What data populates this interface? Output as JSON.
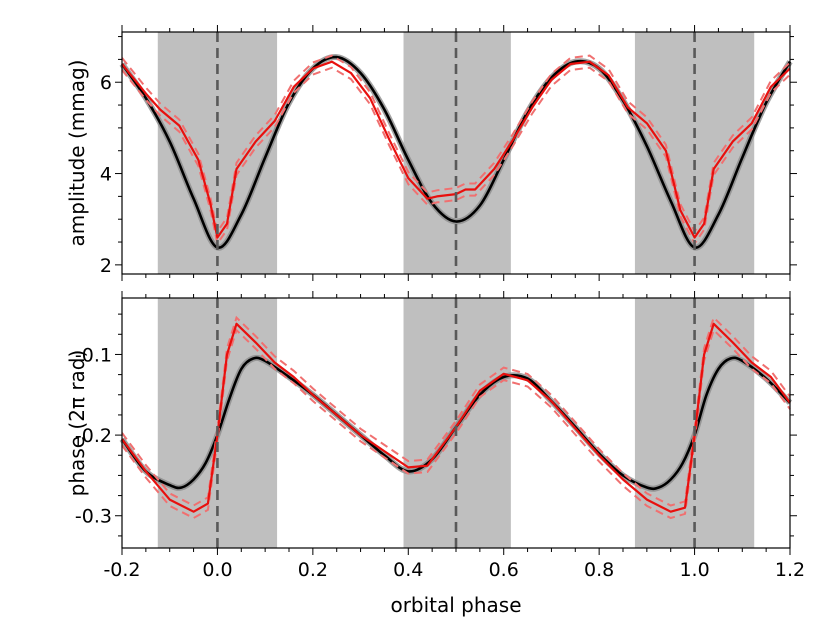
{
  "colors": {
    "eclipse_band": "#bfbfbf",
    "eclipse_line": "#595959",
    "model": "#000000",
    "observed": "#e8100e",
    "observed_error": "#f07070",
    "model_error": "#8c8c8c"
  },
  "chart_data": [
    {
      "type": "line",
      "ylabel": "amplitude (mmag)",
      "xlabel": "",
      "xlim": [
        -0.2,
        1.2
      ],
      "ylim": [
        1.8,
        7.1
      ],
      "y_ticks": [
        2,
        4,
        6
      ],
      "y_tick_labels": [
        "2",
        "4",
        "6"
      ],
      "shaded_regions": [
        [
          -0.125,
          0.125
        ],
        [
          0.39,
          0.615
        ],
        [
          0.875,
          1.125
        ]
      ],
      "vertical_lines": [
        0.0,
        0.5,
        1.0
      ],
      "series": [
        {
          "role": "model",
          "x": [
            -0.2,
            -0.15,
            -0.1,
            -0.05,
            0.0,
            0.05,
            0.1,
            0.15,
            0.2,
            0.25,
            0.3,
            0.35,
            0.4,
            0.45,
            0.5,
            0.55,
            0.6,
            0.65,
            0.7,
            0.75,
            0.8,
            0.85,
            0.9,
            0.95,
            1.0,
            1.05,
            1.1,
            1.15,
            1.2
          ],
          "values": [
            6.4,
            5.65,
            4.7,
            3.45,
            2.38,
            3.1,
            4.35,
            5.55,
            6.3,
            6.55,
            6.2,
            5.4,
            4.3,
            3.35,
            2.95,
            3.3,
            4.3,
            5.35,
            6.1,
            6.45,
            6.3,
            5.6,
            4.6,
            3.4,
            2.38,
            3.1,
            4.35,
            5.55,
            6.45
          ]
        },
        {
          "role": "observed",
          "x": [
            -0.2,
            -0.15,
            -0.12,
            -0.08,
            -0.04,
            -0.015,
            0.0,
            0.02,
            0.04,
            0.08,
            0.12,
            0.16,
            0.2,
            0.24,
            0.28,
            0.32,
            0.36,
            0.4,
            0.44,
            0.46,
            0.5,
            0.52,
            0.54,
            0.58,
            0.62,
            0.66,
            0.7,
            0.74,
            0.78,
            0.82,
            0.86,
            0.9,
            0.94,
            0.97,
            1.0,
            1.02,
            1.04,
            1.08,
            1.12,
            1.16,
            1.2
          ],
          "values": [
            6.4,
            5.75,
            5.4,
            5.05,
            4.3,
            3.35,
            2.6,
            2.9,
            4.1,
            4.7,
            5.15,
            5.9,
            6.3,
            6.45,
            6.2,
            5.65,
            4.75,
            3.9,
            3.45,
            3.5,
            3.55,
            3.65,
            3.65,
            4.1,
            4.75,
            5.45,
            6.05,
            6.4,
            6.45,
            6.15,
            5.45,
            5.1,
            4.5,
            3.2,
            2.6,
            2.9,
            4.1,
            4.7,
            5.1,
            5.9,
            6.3
          ]
        }
      ]
    },
    {
      "type": "line",
      "ylabel": "phase (2π rad)",
      "xlabel": "orbital phase",
      "xlim": [
        -0.2,
        1.2
      ],
      "ylim": [
        -0.34,
        -0.03
      ],
      "x_ticks": [
        -0.2,
        0.0,
        0.2,
        0.4,
        0.6,
        0.8,
        1.0,
        1.2
      ],
      "x_tick_labels": [
        "-0.2",
        "0.0",
        "0.2",
        "0.4",
        "0.6",
        "0.8",
        "1.0",
        "1.2"
      ],
      "y_ticks": [
        -0.3,
        -0.2,
        -0.1
      ],
      "y_tick_labels": [
        "-0.3",
        "-0.2",
        "-0.1"
      ],
      "shaded_regions": [
        [
          -0.125,
          0.125
        ],
        [
          0.39,
          0.615
        ],
        [
          0.875,
          1.125
        ]
      ],
      "vertical_lines": [
        0.0,
        0.5,
        1.0
      ],
      "series": [
        {
          "role": "model",
          "x": [
            -0.2,
            -0.15,
            -0.1,
            -0.075,
            -0.05,
            -0.025,
            0.0,
            0.025,
            0.05,
            0.075,
            0.1,
            0.15,
            0.2,
            0.25,
            0.3,
            0.35,
            0.4,
            0.45,
            0.5,
            0.55,
            0.6,
            0.65,
            0.7,
            0.75,
            0.8,
            0.85,
            0.9,
            0.925,
            0.95,
            0.975,
            1.0,
            1.025,
            1.05,
            1.075,
            1.1,
            1.15,
            1.2
          ],
          "values": [
            -0.205,
            -0.245,
            -0.262,
            -0.265,
            -0.255,
            -0.235,
            -0.2,
            -0.155,
            -0.118,
            -0.105,
            -0.108,
            -0.128,
            -0.15,
            -0.175,
            -0.2,
            -0.225,
            -0.245,
            -0.23,
            -0.19,
            -0.15,
            -0.128,
            -0.13,
            -0.158,
            -0.19,
            -0.223,
            -0.25,
            -0.265,
            -0.265,
            -0.255,
            -0.235,
            -0.2,
            -0.15,
            -0.118,
            -0.105,
            -0.108,
            -0.13,
            -0.16
          ]
        },
        {
          "role": "observed",
          "x": [
            -0.2,
            -0.15,
            -0.1,
            -0.05,
            -0.02,
            0.0,
            0.02,
            0.04,
            0.08,
            0.12,
            0.16,
            0.2,
            0.3,
            0.4,
            0.44,
            0.5,
            0.55,
            0.6,
            0.65,
            0.7,
            0.8,
            0.85,
            0.9,
            0.95,
            0.98,
            1.0,
            1.02,
            1.04,
            1.08,
            1.12,
            1.16,
            1.2
          ],
          "values": [
            -0.205,
            -0.245,
            -0.28,
            -0.295,
            -0.285,
            -0.2,
            -0.1,
            -0.062,
            -0.085,
            -0.11,
            -0.128,
            -0.15,
            -0.2,
            -0.24,
            -0.238,
            -0.19,
            -0.145,
            -0.124,
            -0.132,
            -0.158,
            -0.225,
            -0.255,
            -0.28,
            -0.295,
            -0.29,
            -0.2,
            -0.1,
            -0.062,
            -0.085,
            -0.11,
            -0.128,
            -0.16
          ]
        }
      ]
    }
  ]
}
